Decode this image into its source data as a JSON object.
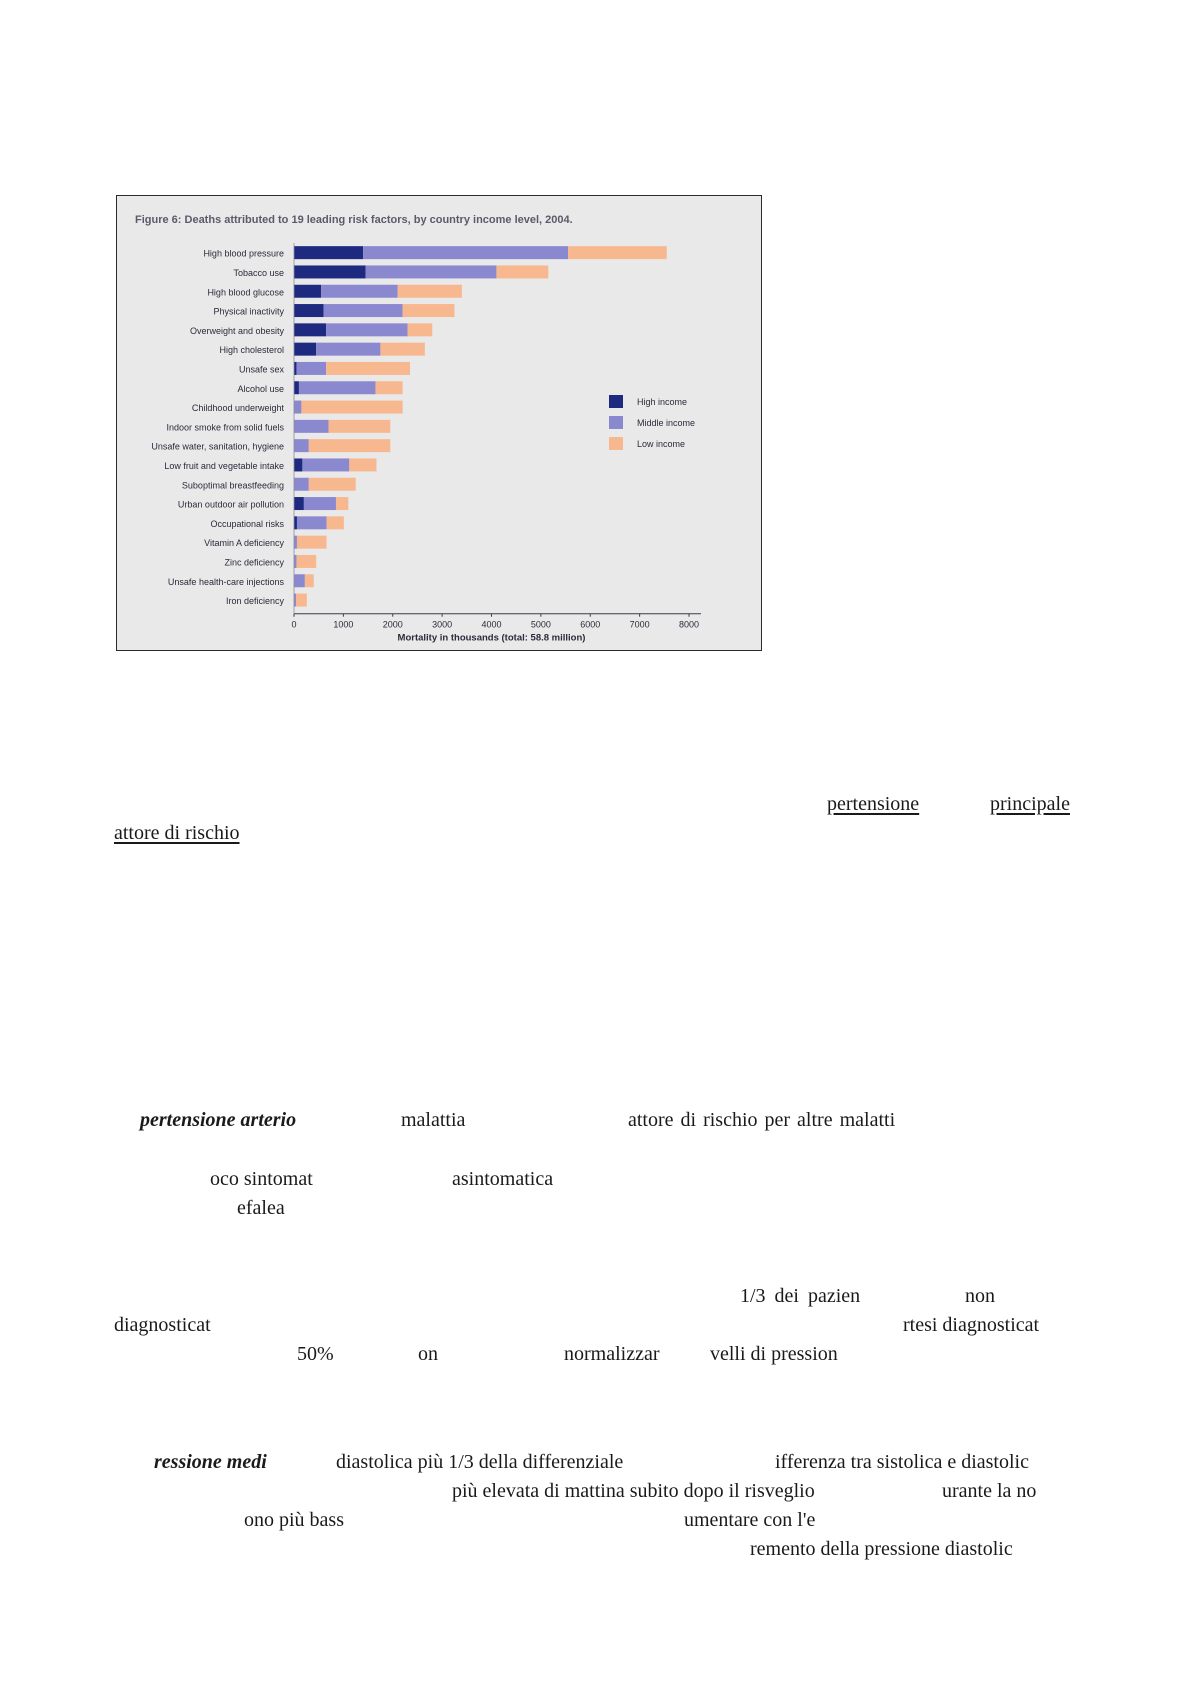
{
  "chart_data": {
    "type": "bar",
    "stacked": true,
    "orientation": "horizontal",
    "title": "Figure 6: Deaths attributed to 19 leading risk factors, by country income level, 2004.",
    "xlabel": "Mortality in thousands (total: 58.8 million)",
    "ylabel": "",
    "xlim": [
      0,
      8000
    ],
    "xticks": [
      "0",
      "1000",
      "2000",
      "3000",
      "4000",
      "5000",
      "6000",
      "7000",
      "8000"
    ],
    "grid": false,
    "legend_position": "right",
    "categories": [
      "High blood pressure",
      "Tobacco use",
      "High blood glucose",
      "Physical inactivity",
      "Overweight and obesity",
      "High cholesterol",
      "Unsafe sex",
      "Alcohol use",
      "Childhood underweight",
      "Indoor smoke from solid fuels",
      "Unsafe water, sanitation, hygiene",
      "Low fruit and vegetable intake",
      "Suboptimal breastfeeding",
      "Urban outdoor air pollution",
      "Occupational risks",
      "Vitamin A deficiency",
      "Zinc deficiency",
      "Unsafe health-care injections",
      "Iron deficiency"
    ],
    "series": [
      {
        "name": "High income",
        "color": "#1e2a80",
        "values": [
          1400,
          1450,
          550,
          600,
          650,
          450,
          50,
          100,
          0,
          0,
          0,
          170,
          0,
          200,
          60,
          0,
          0,
          0,
          0
        ]
      },
      {
        "name": "Middle income",
        "color": "#8a89cf",
        "values": [
          4150,
          2650,
          1550,
          1600,
          1650,
          1300,
          600,
          1550,
          150,
          700,
          300,
          950,
          300,
          650,
          600,
          60,
          50,
          220,
          40
        ]
      },
      {
        "name": "Low income",
        "color": "#f8b88f",
        "values": [
          2000,
          1050,
          1300,
          1050,
          500,
          900,
          1700,
          550,
          2050,
          1250,
          1650,
          550,
          950,
          250,
          350,
          600,
          400,
          180,
          220
        ]
      }
    ]
  },
  "text": {
    "l1a": "pertensione",
    "l1b": "principale",
    "l2": "attore di rischio",
    "l3a": "pertensione arterio",
    "l3b": "malattia",
    "l3c": "attore di rischio per altre malatti",
    "l4a": "oco sintomat",
    "l4b": "asintomatica",
    "l5": "efalea",
    "l6a": "1/3 dei pazien",
    "l6b": "non",
    "l7a": "diagnosticat",
    "l7b": "rtesi diagnosticat",
    "l8a": "50%",
    "l8b": "on",
    "l8c": "normalizzar",
    "l8d": "velli di pression",
    "l9a": "ressione medi",
    "l9b": "diastolica più 1/3 della differenziale",
    "l9c": "ifferenza tra sistolica e diastolic",
    "l10a": "più elevata di mattina subito dopo il risveglio",
    "l10b": "urante la no",
    "l11a": "ono più bass",
    "l11b": "umentare con l'e",
    "l12": "remento della pressione diastolic"
  }
}
